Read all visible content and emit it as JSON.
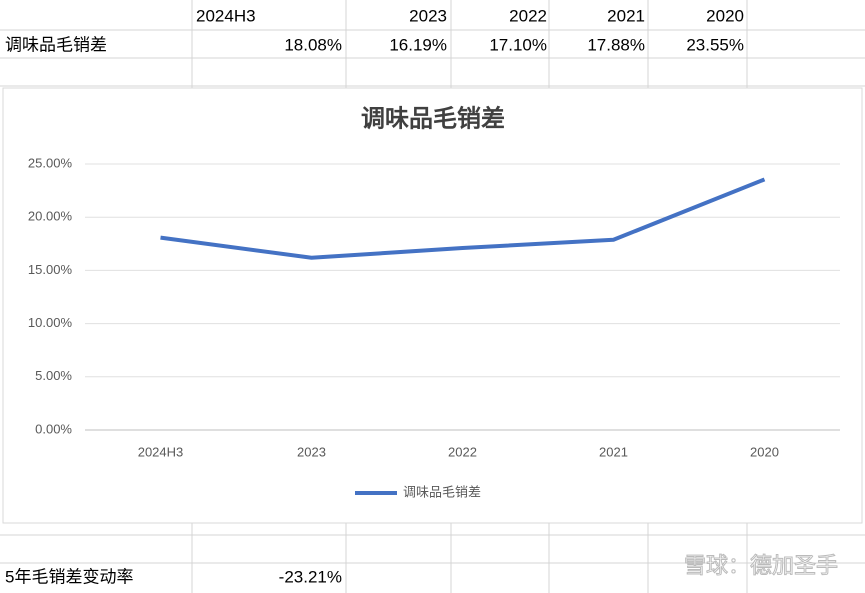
{
  "sheet": {
    "header": [
      "2024H3",
      "2023",
      "2022",
      "2021",
      "2020"
    ],
    "row_label": "调味品毛销差",
    "row_values": [
      "18.08%",
      "16.19%",
      "17.10%",
      "17.88%",
      "23.55%"
    ],
    "summary_label": "5年毛销差变动率",
    "summary_value": "-23.21%"
  },
  "chart_data": {
    "type": "line",
    "title": "调味品毛销差",
    "categories": [
      "2024H3",
      "2023",
      "2022",
      "2021",
      "2020"
    ],
    "series": [
      {
        "name": "调味品毛销差",
        "color": "#4472c4",
        "values": [
          18.08,
          16.19,
          17.1,
          17.88,
          23.55
        ]
      }
    ],
    "ylim": [
      0,
      25
    ],
    "yticks": [
      {
        "value": 0,
        "label": "0.00%"
      },
      {
        "value": 5,
        "label": "5.00%"
      },
      {
        "value": 10,
        "label": "10.00%"
      },
      {
        "value": 15,
        "label": "15.00%"
      },
      {
        "value": 20,
        "label": "20.00%"
      },
      {
        "value": 25,
        "label": "25.00%"
      }
    ],
    "grid": true,
    "legend": "bottom"
  },
  "watermark": "雪球：德加圣手"
}
